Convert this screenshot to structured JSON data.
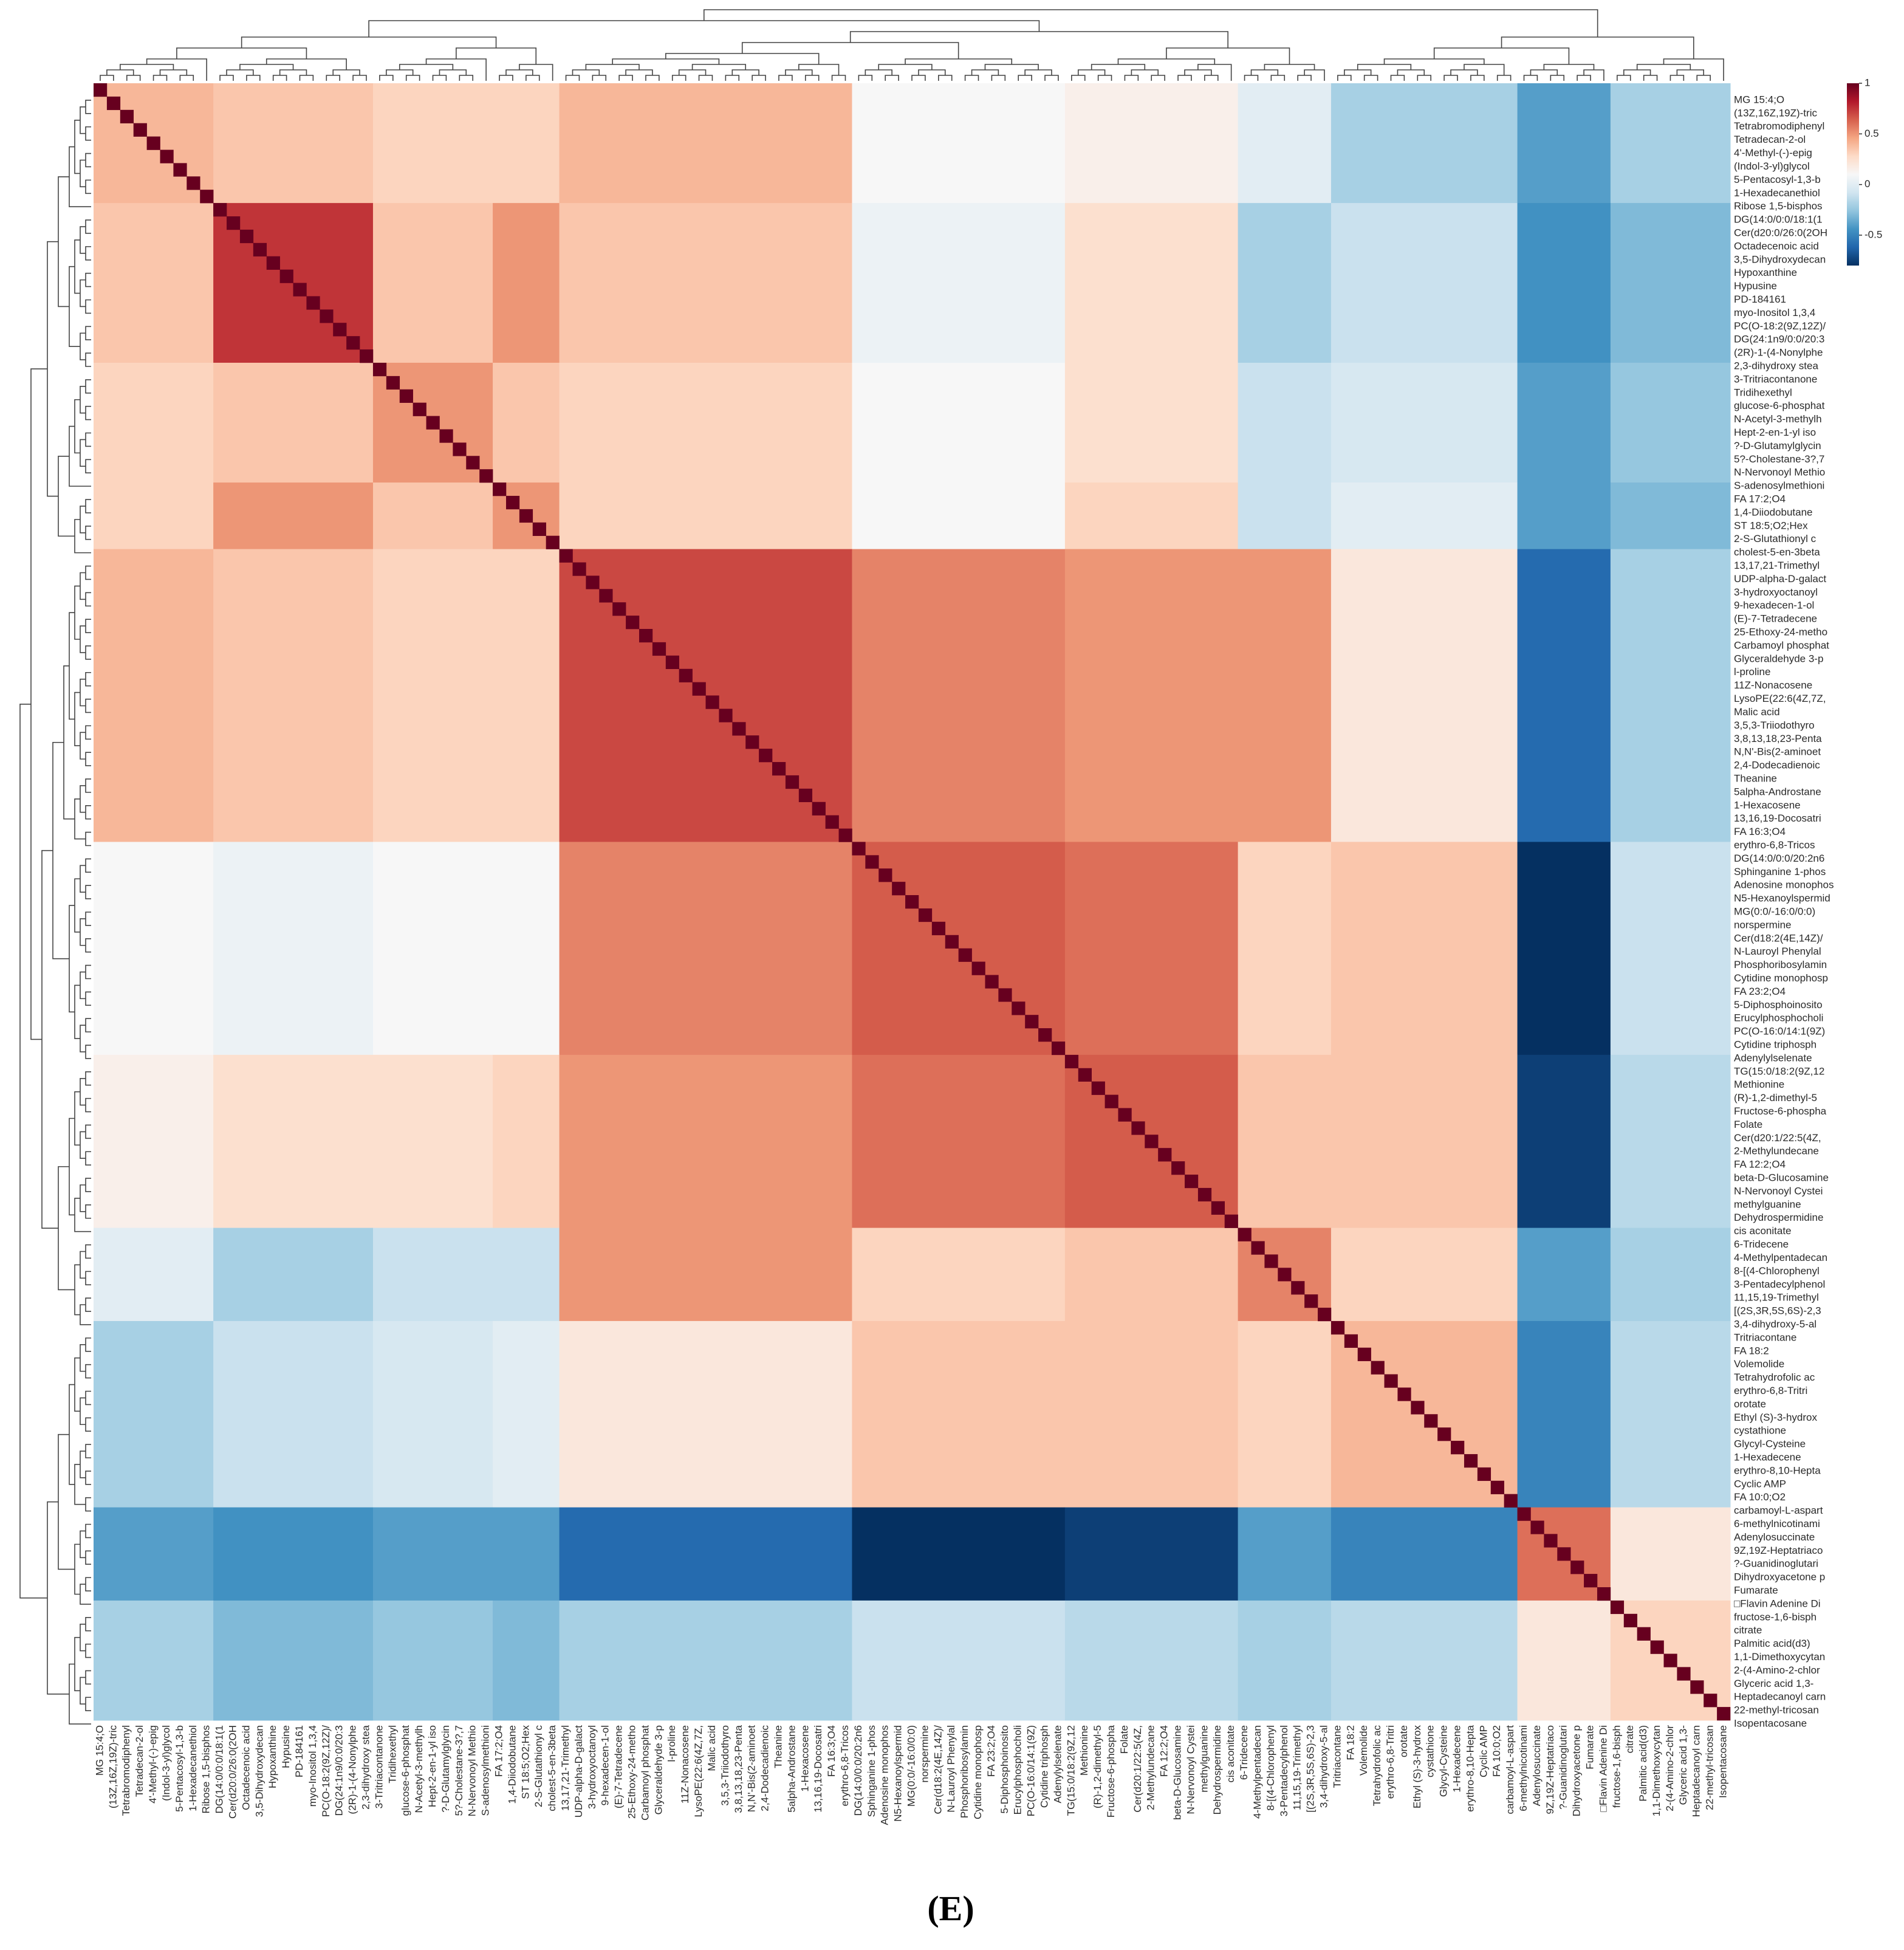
{
  "caption": "(E)",
  "chart_data": {
    "type": "heatmap",
    "clusters": [
      {
        "labels": [
          "MG 15:4;O",
          "(13Z,16Z,19Z)-tric",
          "Tetrabromodiphenyl",
          "Tetradecan-2-ol",
          "4'-Methyl-(-)-epig",
          "(Indol-3-yl)glycol",
          "5-Pentacosyl-1,3-b",
          "1-Hexadecanethiol",
          "Ribose 1,5-bisphos"
        ]
      },
      {
        "labels": [
          "DG(14:0/0:0/18:1(1",
          "Cer(d20:0/26:0(2OH",
          "Octadecenoic acid",
          "3,5-Dihydroxydecan",
          "Hypoxanthine",
          "Hypusine",
          "PD-184161",
          "myo-Inositol 1,3,4",
          "PC(O-18:2(9Z,12Z)/",
          "DG(24:1n9/0:0/20:3",
          "(2R)-1-(4-Nonylphe",
          "2,3-dihydroxy stea"
        ]
      },
      {
        "labels": [
          "3-Tritriacontanone",
          "Tridihexethyl",
          "glucose-6-phosphat",
          "N-Acetyl-3-methylh",
          "Hept-2-en-1-yl iso",
          "?-D-Glutamylglycin",
          "5?-Cholestane-3?,7",
          "N-Nervonoyl Methio",
          "S-adenosylmethioni"
        ]
      },
      {
        "labels": [
          "FA 17:2;O4",
          "1,4-Diiodobutane",
          "ST 18:5;O2;Hex",
          "2-S-Glutathionyl c",
          "cholest-5-en-3beta"
        ]
      },
      {
        "labels": [
          "13,17,21-Trimethyl",
          "UDP-alpha-D-galact",
          "3-hydroxyoctanoyl",
          "9-hexadecen-1-ol",
          "(E)-7-Tetradecene",
          "25-Ethoxy-24-metho",
          "Carbamoyl phosphat",
          "Glyceraldehyde 3-p",
          "l-proline",
          "11Z-Nonacosene",
          "LysoPE(22:6(4Z,7Z,",
          "Malic acid",
          "3,5,3-Triiodothyro",
          "3,8,13,18,23-Penta",
          "N,N'-Bis(2-aminoet",
          "2,4-Dodecadienoic",
          "Theanine",
          "5alpha-Androstane",
          "1-Hexacosene",
          "13,16,19-Docosatri",
          "FA 16:3;O4",
          "erythro-6,8-Tricos"
        ]
      },
      {
        "labels": [
          "DG(14:0/0:0/20:2n6",
          "Sphinganine 1-phos",
          "Adenosine monophos",
          "N5-Hexanoylspermid",
          "MG(0:0/-16:0/0:0)",
          "norspermine",
          "Cer(d18:2(4E,14Z)/",
          "N-Lauroyl Phenylal",
          "Phosphoribosylamin",
          "Cytidine monophosp",
          "FA 23:2;O4",
          "5-Diphosphoinosito",
          "Erucylphosphocholi",
          "PC(O-16:0/14:1(9Z)",
          "Cytidine triphosph",
          "Adenylylselenate"
        ]
      },
      {
        "labels": [
          "TG(15:0/18:2(9Z,12",
          "Methionine",
          "(R)-1,2-dimethyl-5",
          "Fructose-6-phospha",
          "Folate",
          "Cer(d20:1/22:5(4Z,",
          "2-Methylundecane",
          "FA 12:2;O4",
          "beta-D-Glucosamine",
          "N-Nervonoyl Cystei",
          "methylguanine",
          "Dehydrospermidine",
          "cis aconitate"
        ]
      },
      {
        "labels": [
          "6-Tridecene",
          "4-Methylpentadecan",
          "8-[(4-Chlorophenyl",
          "3-Pentadecylphenol",
          "11,15,19-Trimethyl",
          "[(2S,3R,5S,6S)-2,3",
          "3,4-dihydroxy-5-al"
        ]
      },
      {
        "labels": [
          "Tritriacontane",
          "FA 18:2",
          "Volemolide",
          "Tetrahydrofolic ac",
          "erythro-6,8-Tritri",
          "orotate",
          "Ethyl (S)-3-hydrox",
          "cystathione",
          "Glycyl-Cysteine",
          "1-Hexadecene",
          "erythro-8,10-Hepta",
          "Cyclic AMP",
          "FA 10:0;O2",
          "carbamoyl-L-aspart"
        ]
      },
      {
        "labels": [
          "6-methylnicotinami",
          "Adenylosuccinate",
          "9Z,19Z-Heptatriaco",
          "?-Guanidinoglutari",
          "Dihydroxyacetone p",
          "Fumarate",
          "□Flavin Adenine Di"
        ]
      },
      {
        "labels": [
          "fructose-1,6-bisph",
          "citrate",
          "Palmitic acid(d3)",
          "1,1-Dimethoxycytan",
          "2-(4-Amino-2-chlor",
          "Glyceric acid 1,3-",
          "Heptadecanoyl carn",
          "22-methyl-tricosan",
          "Isopentacosane"
        ]
      }
    ],
    "values": [
      [
        0.4,
        0.35,
        0.3,
        0.3,
        0.4,
        0.1,
        0.15,
        0,
        -0.2,
        -0.4,
        -0.2
      ],
      [
        0.35,
        0.75,
        0.35,
        0.5,
        0.35,
        0.05,
        0.25,
        -0.2,
        -0.1,
        -0.45,
        -0.3
      ],
      [
        0.3,
        0.35,
        0.5,
        0.35,
        0.3,
        0.1,
        0.25,
        -0.1,
        -0.05,
        -0.4,
        -0.25
      ],
      [
        0.3,
        0.5,
        0.35,
        0.5,
        0.3,
        0.1,
        0.3,
        -0.1,
        0,
        -0.4,
        -0.3
      ],
      [
        0.4,
        0.35,
        0.3,
        0.3,
        0.7,
        0.55,
        0.5,
        0.5,
        0.2,
        -0.6,
        -0.2
      ],
      [
        0.1,
        0.05,
        0.1,
        0.1,
        0.55,
        0.65,
        0.6,
        0.3,
        0.35,
        -0.8,
        -0.1
      ],
      [
        0.15,
        0.25,
        0.25,
        0.3,
        0.5,
        0.6,
        0.65,
        0.35,
        0.35,
        -0.75,
        -0.15
      ],
      [
        0,
        -0.2,
        -0.1,
        -0.1,
        0.5,
        0.3,
        0.35,
        0.55,
        0.3,
        -0.4,
        -0.2
      ],
      [
        -0.2,
        -0.1,
        -0.05,
        0,
        0.2,
        0.35,
        0.35,
        0.3,
        0.4,
        -0.5,
        -0.15
      ],
      [
        -0.4,
        -0.45,
        -0.4,
        -0.4,
        -0.6,
        -0.8,
        -0.75,
        -0.4,
        -0.5,
        0.6,
        0.2
      ],
      [
        -0.2,
        -0.3,
        -0.25,
        -0.3,
        -0.2,
        -0.1,
        -0.15,
        -0.2,
        -0.15,
        0.2,
        0.3
      ]
    ],
    "diagonal": 1,
    "zlim": [
      -0.8,
      1
    ],
    "zticks": [
      1,
      0.5,
      0,
      -0.5
    ],
    "colormap": [
      "#053061",
      "#2166ac",
      "#4393c3",
      "#92c5de",
      "#d1e5f0",
      "#f7f7f7",
      "#fddbc7",
      "#f4a582",
      "#d6604d",
      "#b2182b",
      "#67001f"
    ]
  }
}
